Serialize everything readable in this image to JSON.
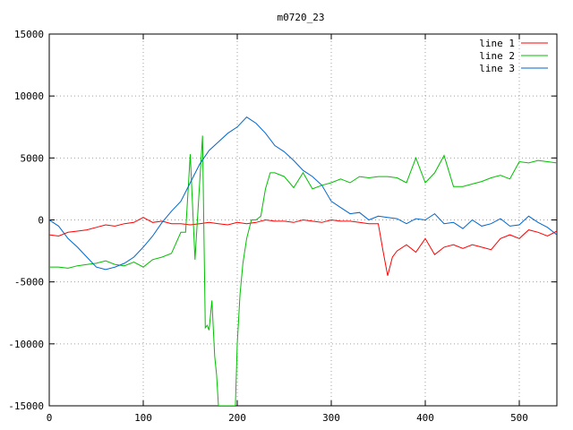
{
  "chart_data": {
    "type": "line",
    "title": "m0720_23",
    "xlabel": "",
    "ylabel": "",
    "xlim": [
      0,
      540
    ],
    "ylim": [
      -15000,
      15000
    ],
    "xticks": [
      0,
      100,
      200,
      300,
      400,
      500
    ],
    "yticks": [
      -15000,
      -10000,
      -5000,
      0,
      5000,
      10000,
      15000
    ],
    "grid": true,
    "legend": "top-right",
    "series": [
      {
        "name": "line 1",
        "color": "#ff0000",
        "x": [
          0,
          10,
          20,
          30,
          40,
          50,
          60,
          70,
          80,
          90,
          100,
          110,
          120,
          130,
          140,
          150,
          160,
          170,
          180,
          190,
          200,
          210,
          220,
          230,
          240,
          250,
          260,
          270,
          280,
          290,
          300,
          310,
          320,
          330,
          340,
          350,
          355,
          360,
          365,
          370,
          380,
          390,
          400,
          410,
          420,
          430,
          440,
          450,
          460,
          470,
          480,
          490,
          500,
          510,
          520,
          530,
          540
        ],
        "y": [
          -1200,
          -1300,
          -1000,
          -900,
          -800,
          -600,
          -400,
          -500,
          -300,
          -200,
          200,
          -200,
          -100,
          -300,
          -300,
          -400,
          -300,
          -200,
          -300,
          -400,
          -200,
          -300,
          -200,
          0,
          -100,
          -100,
          -200,
          0,
          -100,
          -200,
          0,
          -100,
          -100,
          -200,
          -300,
          -300,
          -2500,
          -4500,
          -3000,
          -2500,
          -2000,
          -2600,
          -1500,
          -2800,
          -2200,
          -2000,
          -2300,
          -2000,
          -2200,
          -2400,
          -1500,
          -1200,
          -1500,
          -800,
          -1000,
          -1300,
          -900
        ]
      },
      {
        "name": "line 2",
        "color": "#00c000",
        "x": [
          0,
          10,
          20,
          30,
          40,
          50,
          60,
          70,
          80,
          90,
          100,
          110,
          120,
          130,
          140,
          145,
          150,
          155,
          160,
          163,
          166,
          168,
          170,
          173,
          176,
          178,
          180,
          185,
          190,
          195,
          198,
          200,
          203,
          206,
          210,
          215,
          220,
          225,
          230,
          235,
          240,
          250,
          260,
          270,
          280,
          290,
          300,
          310,
          320,
          330,
          340,
          350,
          360,
          370,
          380,
          390,
          400,
          410,
          420,
          430,
          440,
          450,
          460,
          470,
          480,
          490,
          500,
          510,
          520,
          530,
          540
        ],
        "y": [
          -3800,
          -3800,
          -3900,
          -3700,
          -3600,
          -3500,
          -3300,
          -3600,
          -3700,
          -3400,
          -3800,
          -3200,
          -3000,
          -2700,
          -1000,
          -1000,
          5300,
          -3200,
          3000,
          6800,
          -8700,
          -8500,
          -8900,
          -6500,
          -11000,
          -12500,
          -15000,
          -15000,
          -15000,
          -15000,
          -15000,
          -10000,
          -6000,
          -3500,
          -1500,
          0,
          0,
          300,
          2500,
          3800,
          3800,
          3500,
          2600,
          3800,
          2500,
          2800,
          3000,
          3300,
          3000,
          3500,
          3400,
          3500,
          3500,
          3400,
          3000,
          5000,
          3000,
          3800,
          5200,
          2700,
          2700,
          2900,
          3100,
          3400,
          3600,
          3300,
          4700,
          4600,
          4800,
          4700,
          4600
        ]
      },
      {
        "name": "line 3",
        "color": "#0066cc",
        "x": [
          0,
          10,
          20,
          30,
          40,
          50,
          60,
          70,
          80,
          90,
          100,
          110,
          120,
          130,
          140,
          150,
          160,
          170,
          180,
          190,
          200,
          210,
          220,
          230,
          240,
          250,
          260,
          270,
          280,
          290,
          300,
          310,
          320,
          330,
          340,
          350,
          360,
          370,
          380,
          390,
          400,
          410,
          420,
          430,
          440,
          450,
          460,
          470,
          480,
          490,
          500,
          510,
          520,
          530,
          540
        ],
        "y": [
          0,
          -500,
          -1500,
          -2200,
          -3000,
          -3800,
          -4000,
          -3800,
          -3500,
          -3000,
          -2200,
          -1300,
          -200,
          700,
          1500,
          3000,
          4500,
          5600,
          6300,
          7000,
          7500,
          8300,
          7800,
          7000,
          6000,
          5500,
          4800,
          4000,
          3500,
          2800,
          1500,
          1000,
          500,
          600,
          0,
          300,
          200,
          100,
          -300,
          100,
          0,
          500,
          -300,
          -200,
          -700,
          0,
          -500,
          -300,
          100,
          -500,
          -400,
          300,
          -200,
          -600,
          -1200
        ]
      }
    ]
  }
}
